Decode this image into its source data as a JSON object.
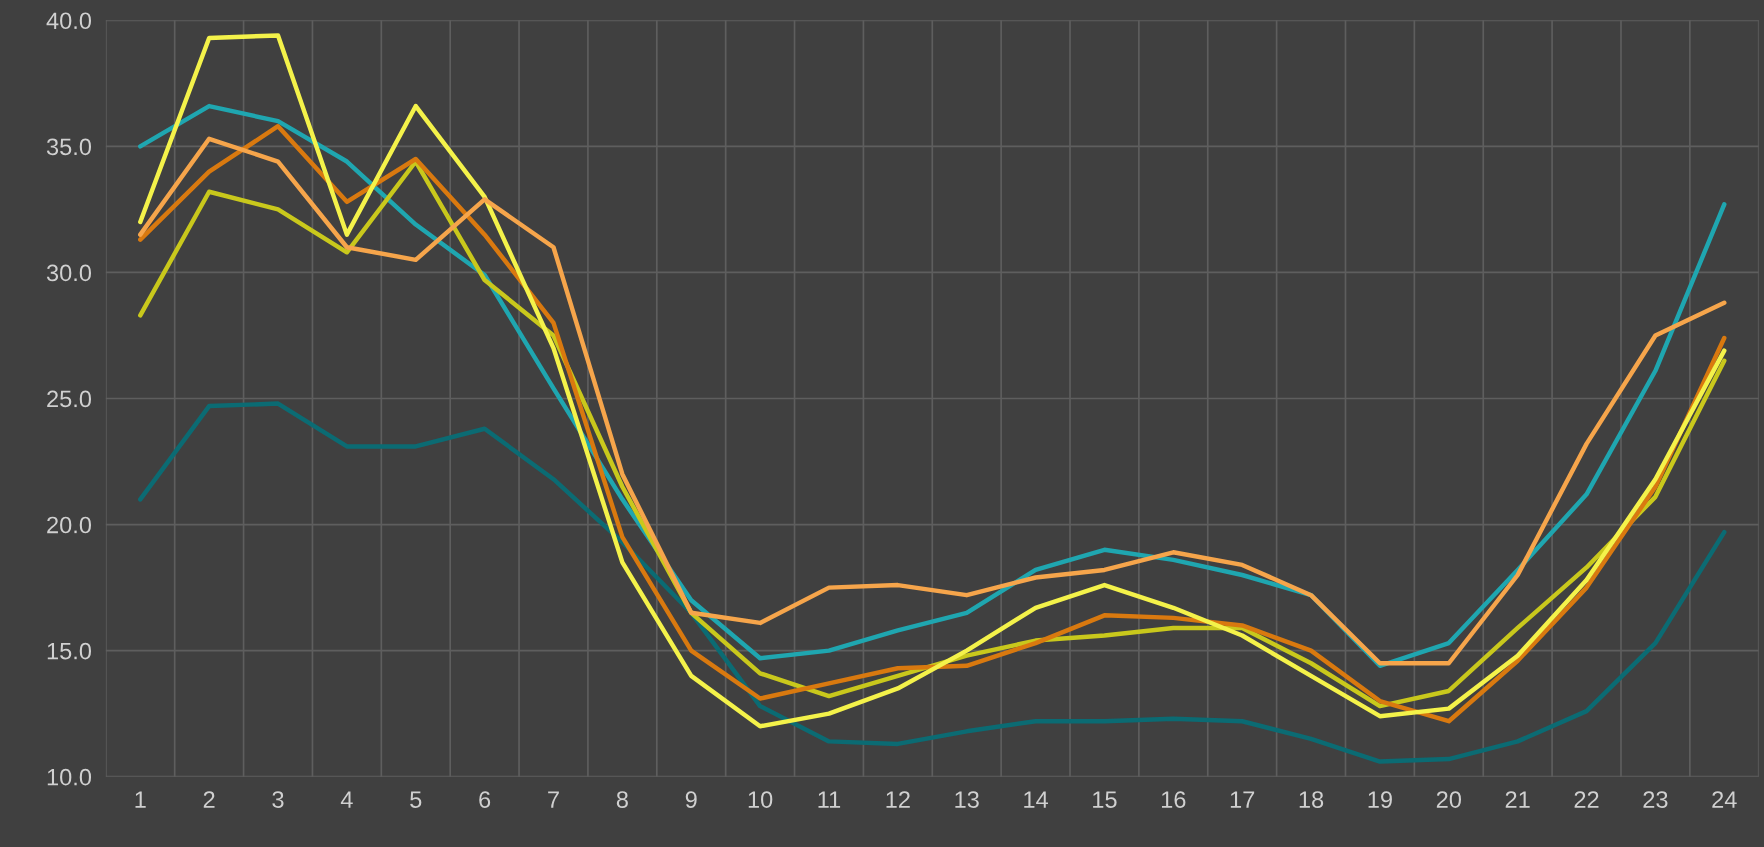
{
  "chart_data": {
    "type": "line",
    "categories": [
      "1",
      "2",
      "3",
      "4",
      "5",
      "6",
      "7",
      "8",
      "9",
      "10",
      "11",
      "12",
      "13",
      "14",
      "15",
      "16",
      "17",
      "18",
      "19",
      "20",
      "21",
      "22",
      "23",
      "24"
    ],
    "series": [
      {
        "color": "#0b6b73",
        "values": [
          21.0,
          24.7,
          24.8,
          23.1,
          23.1,
          23.8,
          21.8,
          19.3,
          16.5,
          12.8,
          11.4,
          11.3,
          11.8,
          12.2,
          12.2,
          12.3,
          12.2,
          11.5,
          10.6,
          10.7,
          11.4,
          12.6,
          15.3,
          19.7
        ]
      },
      {
        "color": "#1fa6b0",
        "values": [
          35.0,
          36.6,
          36.0,
          34.4,
          31.9,
          29.9,
          25.4,
          21.0,
          17.0,
          14.7,
          15.0,
          15.8,
          16.5,
          18.2,
          19.0,
          18.6,
          18.0,
          17.2,
          14.4,
          15.3,
          18.2,
          21.2,
          26.1,
          32.7
        ]
      },
      {
        "color": "#c9c81c",
        "values": [
          28.3,
          33.2,
          32.5,
          30.8,
          34.4,
          29.7,
          27.5,
          21.5,
          16.5,
          14.1,
          13.2,
          14.0,
          14.8,
          15.4,
          15.6,
          15.9,
          15.9,
          14.5,
          12.8,
          13.4,
          15.9,
          18.3,
          21.1,
          26.5
        ]
      },
      {
        "color": "#d9790f",
        "values": [
          31.3,
          34.0,
          35.8,
          32.8,
          34.5,
          31.5,
          28.0,
          19.5,
          15.0,
          13.1,
          13.7,
          14.3,
          14.4,
          15.3,
          16.4,
          16.3,
          16.0,
          15.0,
          13.0,
          12.2,
          14.6,
          17.5,
          21.5,
          27.4
        ]
      },
      {
        "color": "#f4f24a",
        "values": [
          32.0,
          39.3,
          39.4,
          31.5,
          36.6,
          33.0,
          27.0,
          18.5,
          14.0,
          12.0,
          12.5,
          13.5,
          15.0,
          16.7,
          17.6,
          16.7,
          15.6,
          14.0,
          12.4,
          12.7,
          14.8,
          17.8,
          21.8,
          26.9
        ]
      },
      {
        "color": "#f6a54b",
        "values": [
          31.5,
          35.3,
          34.4,
          31.0,
          30.5,
          32.9,
          31.0,
          22.0,
          16.5,
          16.1,
          17.5,
          17.6,
          17.2,
          17.9,
          18.2,
          18.9,
          18.4,
          17.2,
          14.5,
          14.5,
          18.0,
          23.2,
          27.5,
          28.8
        ]
      }
    ],
    "ylim": [
      10,
      40
    ],
    "yticks": [
      {
        "value": 10,
        "label": "10.0"
      },
      {
        "value": 15,
        "label": "15.0"
      },
      {
        "value": 20,
        "label": "20.0"
      },
      {
        "value": 25,
        "label": "25.0"
      },
      {
        "value": 30,
        "label": "30.0"
      },
      {
        "value": 35,
        "label": "35.0"
      },
      {
        "value": 40,
        "label": "40.0"
      }
    ],
    "grid": true,
    "marker": "none",
    "line_style": "solid"
  }
}
